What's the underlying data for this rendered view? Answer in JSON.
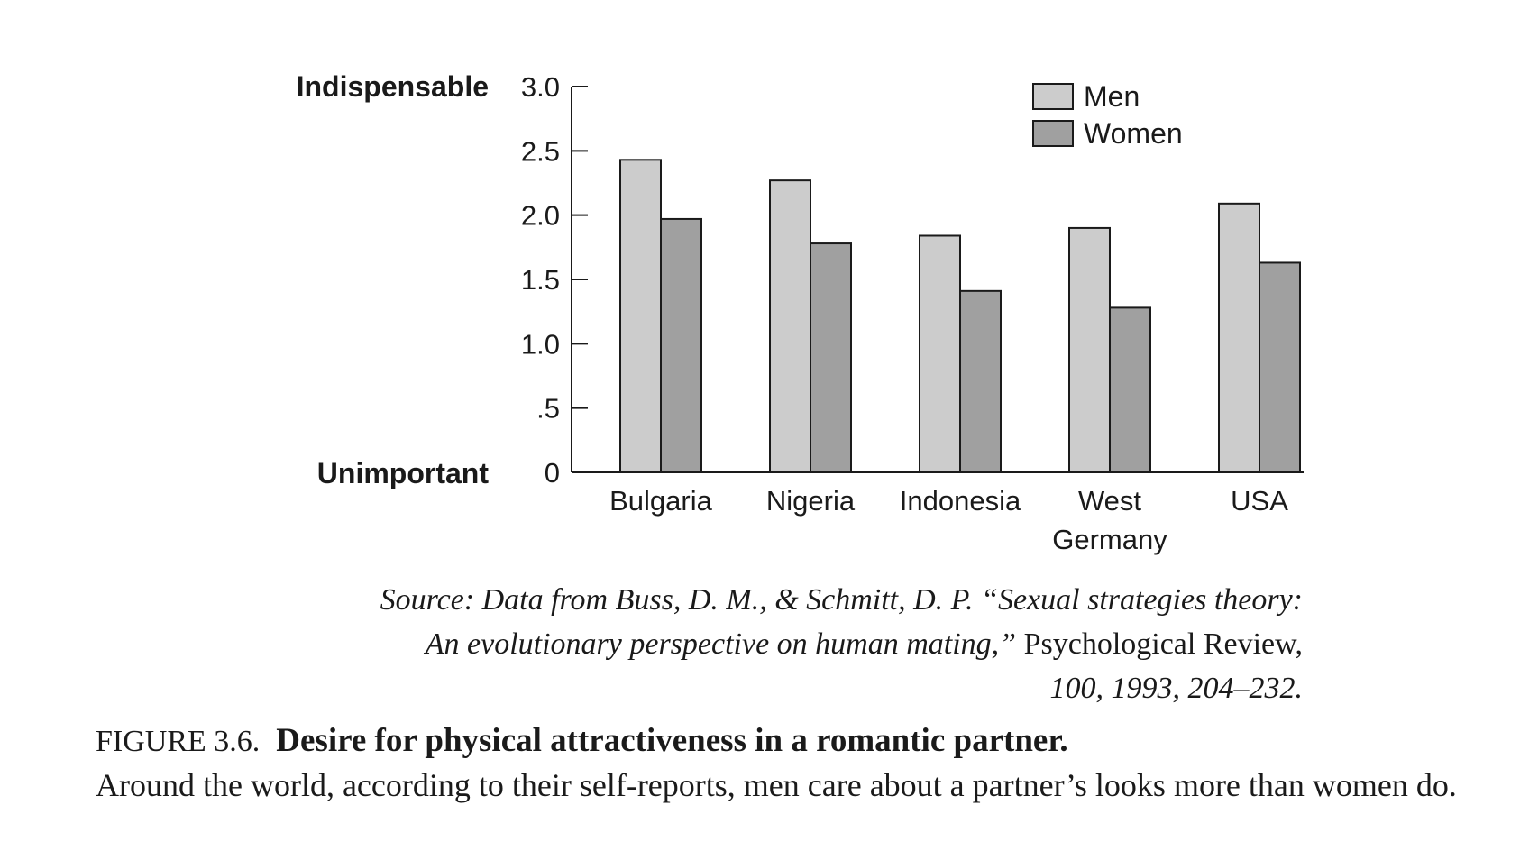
{
  "chart_data": {
    "type": "bar",
    "categories": [
      "Bulgaria",
      "Nigeria",
      "Indonesia",
      "West\nGermany",
      "USA"
    ],
    "series": [
      {
        "name": "Men",
        "values": [
          2.43,
          2.27,
          1.84,
          1.9,
          2.09
        ],
        "color": "#cccccc"
      },
      {
        "name": "Women",
        "values": [
          1.97,
          1.78,
          1.41,
          1.28,
          1.63
        ],
        "color": "#a0a0a0"
      }
    ],
    "ylim": [
      0,
      3.0
    ],
    "yticks": [
      {
        "value": 0,
        "label": "0"
      },
      {
        "value": 0.5,
        "label": ".5"
      },
      {
        "value": 1.0,
        "label": "1.0"
      },
      {
        "value": 1.5,
        "label": "1.5"
      },
      {
        "value": 2.0,
        "label": "2.0"
      },
      {
        "value": 2.5,
        "label": "2.5"
      },
      {
        "value": 3.0,
        "label": "3.0"
      }
    ],
    "y_anchor_labels": {
      "top": "Indispensable",
      "bottom": "Unimportant"
    },
    "legend_position": "top-right",
    "grid": false
  },
  "source": {
    "line1": "Source: Data from Buss, D. M., & Schmitt, D. P. “Sexual strategies theory:",
    "line2_italic": "An evolutionary perspective on human mating,”",
    "line2_roman": "Psychological Review,",
    "line3": "100, 1993, 204–232."
  },
  "caption": {
    "label": "FIGURE 3.6.",
    "title": "Desire for physical attractiveness in a romantic partner.",
    "text": "Around the world, according to their self-reports, men care about a partner’s looks more than women do."
  }
}
